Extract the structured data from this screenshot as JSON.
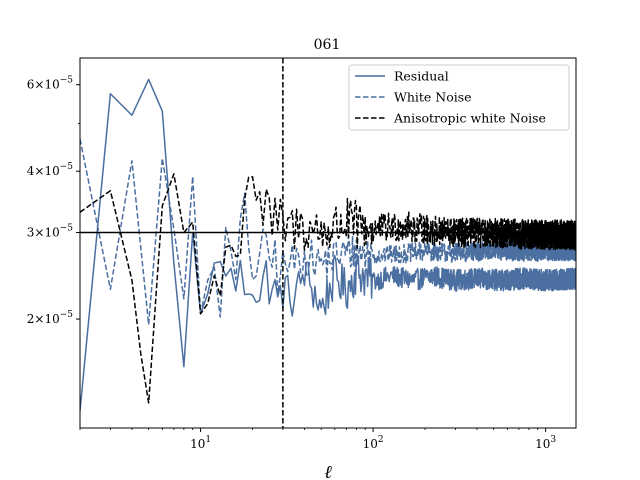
{
  "chart_data": {
    "type": "line",
    "title": "061",
    "xlabel": "ℓ",
    "ylabel": "",
    "xscale": "log",
    "yscale": "log",
    "xlim": [
      2,
      1500
    ],
    "ylim": [
      1.2e-05,
      6.8e-05
    ],
    "x_ticks": [
      {
        "value": 10,
        "base": "10",
        "exp": "1"
      },
      {
        "value": 100,
        "base": "10",
        "exp": "2"
      },
      {
        "value": 1000,
        "base": "10",
        "exp": "3"
      }
    ],
    "y_ticks": [
      {
        "value": 2e-05,
        "mant": "2",
        "exp": "−5"
      },
      {
        "value": 3e-05,
        "mant": "3",
        "exp": "−5"
      },
      {
        "value": 4e-05,
        "mant": "4",
        "exp": "−5"
      },
      {
        "value": 6e-05,
        "mant": "6",
        "exp": "−5"
      }
    ],
    "legend_position": "top-right",
    "series": [
      {
        "name": "Residual",
        "style": "solid",
        "color": "#4a6fa0",
        "points": [
          [
            2,
            1.3e-05
          ],
          [
            3,
            5.75e-05
          ],
          [
            4,
            5.2e-05
          ],
          [
            5,
            6.15e-05
          ],
          [
            6,
            5.3e-05
          ],
          [
            7,
            2.6e-05
          ],
          [
            8,
            1.6e-05
          ],
          [
            9,
            3e-05
          ],
          [
            10,
            2.05e-05
          ],
          [
            11,
            2.25e-05
          ],
          [
            12,
            2.6e-05
          ],
          [
            13,
            2.45e-05
          ],
          [
            14,
            2.7e-05
          ],
          [
            15,
            2.35e-05
          ],
          [
            16,
            2.4e-05
          ],
          [
            18,
            2.4e-05
          ],
          [
            20,
            2.5e-05
          ],
          [
            22,
            2.2e-05
          ],
          [
            25,
            2.5e-05
          ],
          [
            28,
            2.1e-05
          ],
          [
            30,
            2.3e-05
          ],
          [
            35,
            2.2e-05
          ],
          [
            40,
            2.5e-05
          ],
          [
            45,
            2.3e-05
          ],
          [
            50,
            2.1e-05
          ],
          [
            60,
            2.45e-05
          ],
          [
            70,
            2.3e-05
          ],
          [
            80,
            2.5e-05
          ],
          [
            100,
            2.4e-05
          ],
          [
            130,
            2.45e-05
          ],
          [
            170,
            2.4e-05
          ],
          [
            220,
            2.45e-05
          ],
          [
            300,
            2.4e-05
          ],
          [
            400,
            2.42e-05
          ],
          [
            550,
            2.4e-05
          ],
          [
            750,
            2.42e-05
          ],
          [
            1000,
            2.4e-05
          ],
          [
            1500,
            2.42e-05
          ]
        ],
        "noise": [
          {
            "from": 12,
            "to": 30,
            "amp": 0.16
          },
          {
            "from": 30,
            "to": 100,
            "amp": 0.1
          },
          {
            "from": 100,
            "to": 1500,
            "amp": 0.05
          }
        ]
      },
      {
        "name": "White Noise",
        "style": "dashed",
        "color": "#4a6fa0",
        "points": [
          [
            2,
            4.65e-05
          ],
          [
            3,
            2.3e-05
          ],
          [
            4,
            4.2e-05
          ],
          [
            5,
            1.95e-05
          ],
          [
            6,
            4.25e-05
          ],
          [
            7,
            3.05e-05
          ],
          [
            8,
            2.2e-05
          ],
          [
            9,
            3.9e-05
          ],
          [
            10,
            2.05e-05
          ],
          [
            11,
            2.4e-05
          ],
          [
            12,
            2.55e-05
          ],
          [
            13,
            2.3e-05
          ],
          [
            14,
            2.8e-05
          ],
          [
            16,
            2.4e-05
          ],
          [
            18,
            3.3e-05
          ],
          [
            20,
            2.6e-05
          ],
          [
            25,
            2.7e-05
          ],
          [
            30,
            2.55e-05
          ],
          [
            40,
            2.7e-05
          ],
          [
            50,
            2.6e-05
          ],
          [
            70,
            2.75e-05
          ],
          [
            100,
            2.7e-05
          ],
          [
            150,
            2.72e-05
          ],
          [
            200,
            2.75e-05
          ],
          [
            300,
            2.73e-05
          ],
          [
            500,
            2.76e-05
          ],
          [
            800,
            2.74e-05
          ],
          [
            1000,
            2.75e-05
          ],
          [
            1500,
            2.75e-05
          ]
        ],
        "noise": [
          {
            "from": 12,
            "to": 30,
            "amp": 0.15
          },
          {
            "from": 30,
            "to": 100,
            "amp": 0.09
          },
          {
            "from": 100,
            "to": 1500,
            "amp": 0.045
          }
        ]
      },
      {
        "name": "Anisotropic white Noise",
        "style": "dashed",
        "color": "#000000",
        "points": [
          [
            2,
            3.3e-05
          ],
          [
            3,
            3.65e-05
          ],
          [
            4,
            2.4e-05
          ],
          [
            4.5,
            1.7e-05
          ],
          [
            5,
            1.35e-05
          ],
          [
            5.5,
            2.2e-05
          ],
          [
            6,
            3.4e-05
          ],
          [
            7,
            3.95e-05
          ],
          [
            8,
            3e-05
          ],
          [
            9,
            3.15e-05
          ],
          [
            10,
            2.05e-05
          ],
          [
            11,
            2.15e-05
          ],
          [
            12,
            2.45e-05
          ],
          [
            13,
            2.25e-05
          ],
          [
            14,
            2.85e-05
          ],
          [
            16,
            2.55e-05
          ],
          [
            18,
            3.7e-05
          ],
          [
            20,
            4.1e-05
          ],
          [
            22,
            3.4e-05
          ],
          [
            25,
            3.2e-05
          ],
          [
            30,
            3.05e-05
          ],
          [
            40,
            3.1e-05
          ],
          [
            50,
            3e-05
          ],
          [
            70,
            3.15e-05
          ],
          [
            100,
            3.05e-05
          ],
          [
            150,
            3.1e-05
          ],
          [
            200,
            3.05e-05
          ],
          [
            300,
            3e-05
          ],
          [
            500,
            3e-05
          ],
          [
            800,
            2.98e-05
          ],
          [
            1000,
            2.98e-05
          ],
          [
            1500,
            2.97e-05
          ]
        ],
        "noise": [
          {
            "from": 12,
            "to": 30,
            "amp": 0.15
          },
          {
            "from": 30,
            "to": 100,
            "amp": 0.12
          },
          {
            "from": 100,
            "to": 1500,
            "amp": 0.07
          }
        ]
      }
    ],
    "reference_lines": [
      {
        "orientation": "horizontal",
        "value": 3e-05,
        "style": "solid",
        "color": "#000000"
      },
      {
        "orientation": "vertical",
        "value": 30,
        "style": "dashed",
        "color": "#000000"
      }
    ]
  }
}
